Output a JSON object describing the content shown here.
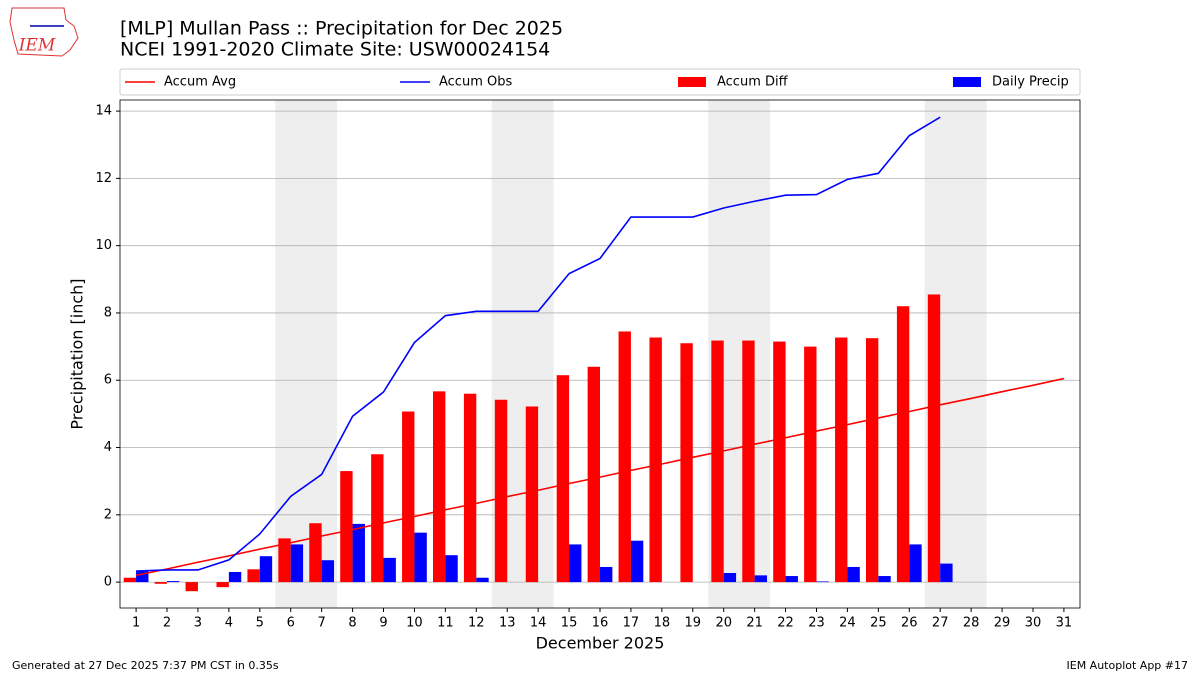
{
  "chart_data": {
    "type": "bar",
    "logo_text": "IEM",
    "title": "[MLP] Mullan Pass :: Precipitation for Dec 2025",
    "subtitle": "NCEI 1991-2020 Climate Site: USW00024154",
    "x_label": "December 2025",
    "y_label": "Precipitation [inch]",
    "footer_left": "Generated at 27 Dec 2025 7:37 PM CST in 0.35s",
    "footer_right": "IEM Autoplot App #17",
    "x": [
      1,
      2,
      3,
      4,
      5,
      6,
      7,
      8,
      9,
      10,
      11,
      12,
      13,
      14,
      15,
      16,
      17,
      18,
      19,
      20,
      21,
      22,
      23,
      24,
      25,
      26,
      27,
      28,
      29,
      30,
      31
    ],
    "series": [
      {
        "name": "Accum Avg",
        "kind": "line",
        "color": "#ff0000",
        "values": [
          0.2,
          0.39,
          0.59,
          0.78,
          0.98,
          1.17,
          1.37,
          1.56,
          1.76,
          1.95,
          2.15,
          2.34,
          2.54,
          2.73,
          2.93,
          3.12,
          3.32,
          3.51,
          3.71,
          3.9,
          4.1,
          4.29,
          4.49,
          4.68,
          4.88,
          5.07,
          5.27,
          5.46,
          5.66,
          5.85,
          6.05
        ]
      },
      {
        "name": "Accum Obs",
        "kind": "line",
        "color": "#0000ff",
        "values": [
          0.33,
          0.36,
          0.36,
          0.66,
          1.43,
          2.55,
          3.2,
          4.93,
          5.65,
          7.12,
          7.92,
          8.05,
          8.05,
          8.05,
          9.17,
          9.62,
          10.85,
          10.85,
          10.85,
          11.12,
          11.32,
          11.5,
          11.52,
          11.97,
          12.15,
          13.27,
          13.82,
          null,
          null,
          null,
          null
        ]
      },
      {
        "name": "Accum Diff",
        "kind": "bar",
        "color": "#ff0000",
        "values": [
          0.13,
          -0.05,
          -0.27,
          -0.15,
          0.38,
          1.3,
          1.75,
          3.3,
          3.8,
          5.07,
          5.67,
          5.6,
          5.42,
          5.22,
          6.15,
          6.4,
          7.45,
          7.27,
          7.1,
          7.18,
          7.18,
          7.15,
          7.0,
          7.27,
          7.25,
          8.2,
          8.55,
          null,
          null,
          null,
          null
        ]
      },
      {
        "name": "Daily Precip",
        "kind": "bar",
        "color": "#0000ff",
        "values": [
          0.33,
          0.03,
          0,
          0.3,
          0.77,
          1.12,
          0.65,
          1.73,
          0.72,
          1.47,
          0.8,
          0.13,
          0,
          0,
          1.12,
          0.45,
          1.23,
          0,
          0,
          0.27,
          0.2,
          0.18,
          0.02,
          0.45,
          0.18,
          1.12,
          0.55,
          null,
          null,
          null,
          null
        ]
      }
    ],
    "xlim": [
      0.48,
      31.52
    ],
    "xticks": [
      1,
      2,
      3,
      4,
      5,
      6,
      7,
      8,
      9,
      10,
      11,
      12,
      13,
      14,
      15,
      16,
      17,
      18,
      19,
      20,
      21,
      22,
      23,
      24,
      25,
      26,
      27,
      28,
      29,
      30,
      31
    ],
    "ylim": [
      -0.77,
      14.33
    ],
    "yticks": [
      0,
      2,
      4,
      6,
      8,
      10,
      12,
      14
    ],
    "grid": true
  }
}
